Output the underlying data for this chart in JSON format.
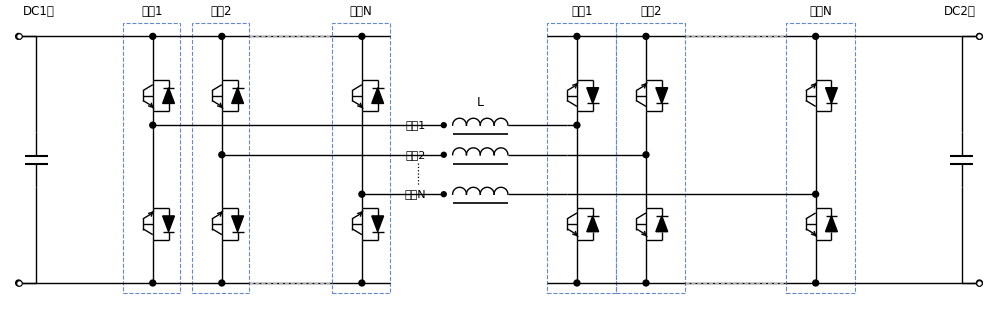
{
  "fig_width": 10.0,
  "fig_height": 3.12,
  "dpi": 100,
  "bg_color": "#ffffff",
  "line_color": "#000000",
  "line_width": 1.0,
  "dashed_color": "#6688cc",
  "labels": {
    "dc1": "DC1侧",
    "dc2": "DC2侧",
    "mod1_left": "模块1",
    "mod2_left": "模块2",
    "modN_left": "模块N",
    "mod1_right": "模块1",
    "mod2_right": "模块2",
    "modN_right": "模块N",
    "winding1": "绕组1",
    "winding2": "绕组2",
    "windingN": "绕组N",
    "L_label": "L"
  }
}
